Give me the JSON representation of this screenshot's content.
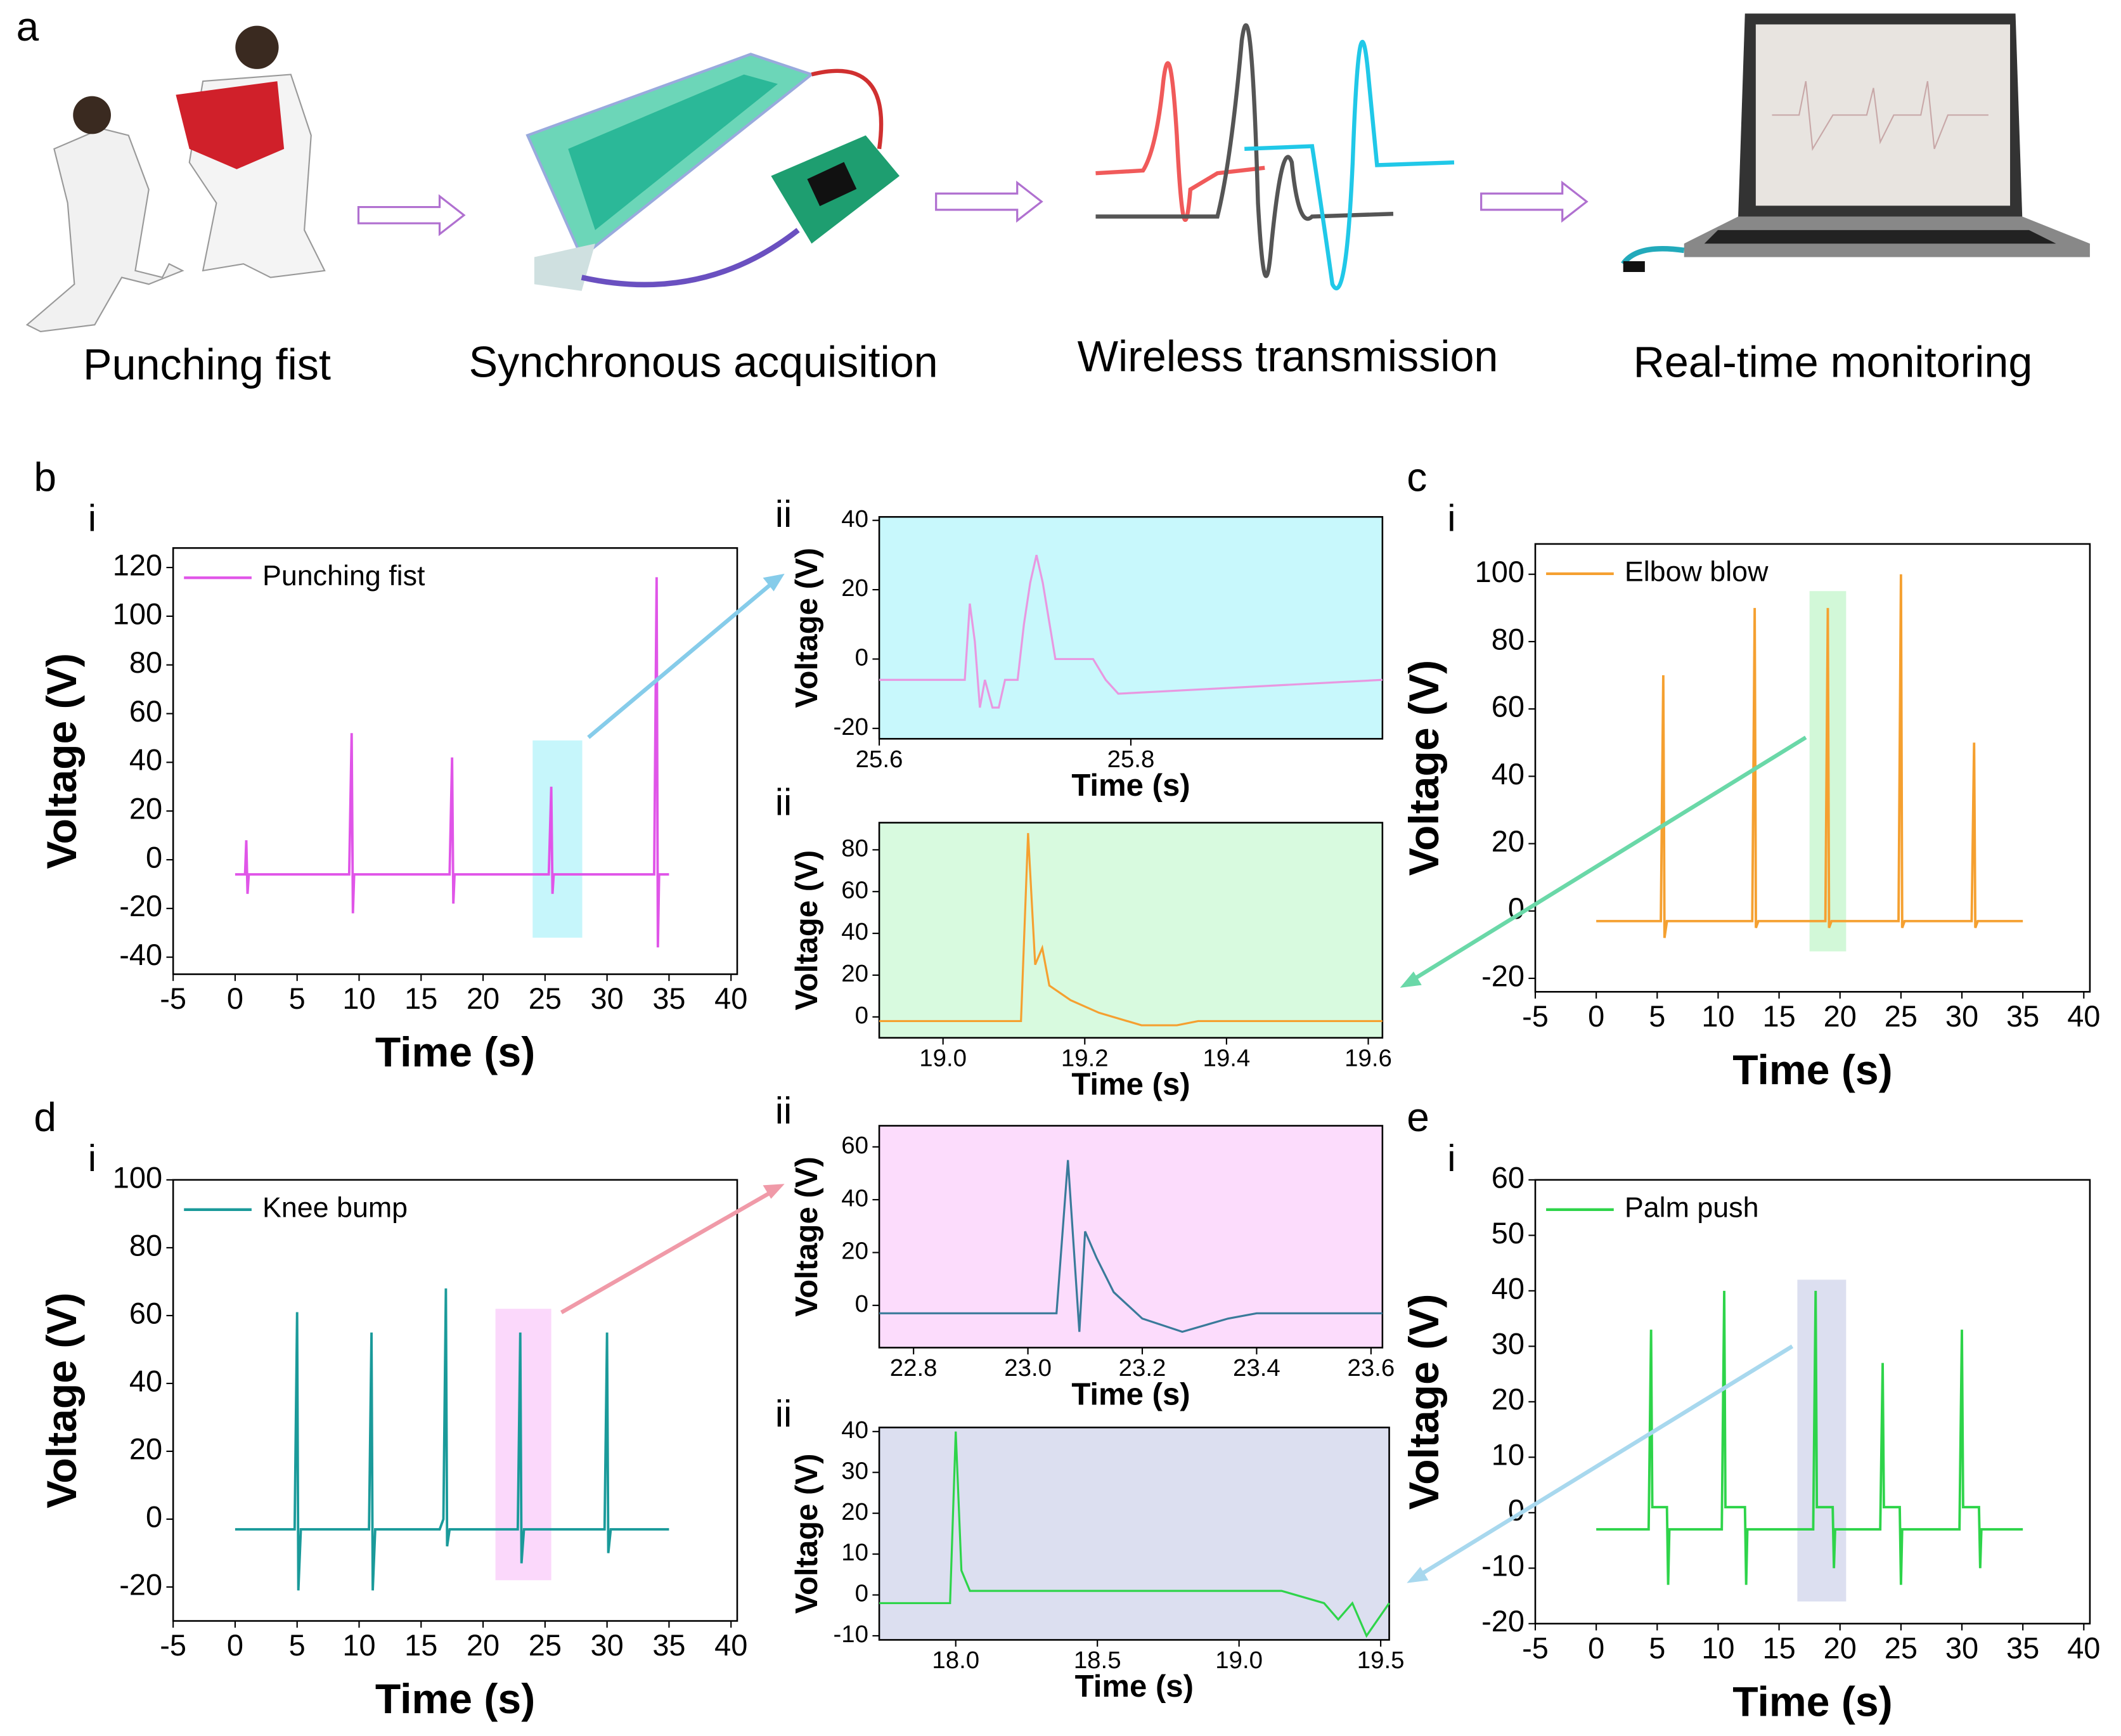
{
  "panel_a": {
    "label": "a",
    "steps": [
      "Punching fist",
      "Synchronous acquisition",
      "Wireless transmission",
      "Real-time monitoring"
    ]
  },
  "chart_data": [
    {
      "type": "line",
      "panel": "b",
      "subpanel": "i",
      "xlabel": "Time (s)",
      "ylabel": "Voltage (V)",
      "legend": "upper left",
      "xlim": [
        -5,
        40.5
      ],
      "xticks": [
        -5,
        0,
        5,
        10,
        15,
        20,
        25,
        30,
        35,
        40
      ],
      "ylim": [
        -47,
        128
      ],
      "yticks": [
        -40,
        -20,
        0,
        20,
        40,
        60,
        80,
        100,
        120
      ],
      "highlight": {
        "x0": 24,
        "x1": 28,
        "y0": -32,
        "y1": 49,
        "color": "#c6f6fb"
      },
      "series": [
        {
          "name": "Punching fist",
          "color": "#e055e8",
          "x": [
            0,
            0.8,
            0.9,
            1.0,
            1.1,
            1.3,
            9.2,
            9.4,
            9.5,
            9.6,
            9.8,
            17.3,
            17.5,
            17.6,
            17.7,
            17.9,
            25.3,
            25.5,
            25.6,
            25.7,
            26,
            33.8,
            34,
            34.1,
            34.2,
            34.4,
            35
          ],
          "values": [
            -6,
            -6,
            8,
            -14,
            -6,
            -6,
            -6,
            52,
            -22,
            -6,
            -6,
            -6,
            42,
            -18,
            -6,
            -6,
            -6,
            30,
            -14,
            -6,
            -6,
            -6,
            116,
            -36,
            -6,
            -6,
            -6
          ]
        }
      ]
    },
    {
      "type": "line",
      "subpanel": "ii",
      "xlabel": "Time (s)",
      "ylabel": "Voltage (V)",
      "background": "#c8f8fc",
      "xlim": [
        25.6,
        26.0
      ],
      "xticks": [
        25.6,
        25.8
      ],
      "ylim": [
        -23,
        41
      ],
      "yticks": [
        -20,
        0,
        20,
        40
      ],
      "series": [
        {
          "color": "#e898e0",
          "x": [
            25.6,
            25.668,
            25.672,
            25.676,
            25.68,
            25.684,
            25.69,
            25.695,
            25.7,
            25.71,
            25.715,
            25.72,
            25.725,
            25.73,
            25.74,
            25.77,
            25.78,
            25.79,
            26.0
          ],
          "values": [
            -6,
            -6,
            16,
            5,
            -14,
            -6,
            -14,
            -14,
            -6,
            -6,
            10,
            22,
            30,
            22,
            0,
            0,
            -6,
            -10,
            -6
          ]
        }
      ]
    },
    {
      "type": "line",
      "subpanel": "ii",
      "xlabel": "Time (s)",
      "ylabel": "Voltage (V)",
      "background": "#d8fadf",
      "xlim": [
        18.91,
        19.62
      ],
      "xticks": [
        {
          "value": 19,
          "label": "19.0"
        },
        19.2,
        19.4,
        19.6
      ],
      "ylim": [
        -10,
        93
      ],
      "yticks": [
        0,
        20,
        40,
        60,
        80
      ],
      "series": [
        {
          "color": "#f5a030",
          "x": [
            18.91,
            19.11,
            19.12,
            19.13,
            19.14,
            19.15,
            19.18,
            19.22,
            19.28,
            19.33,
            19.36,
            19.62
          ],
          "values": [
            -2,
            -2,
            88,
            25,
            33,
            15,
            8,
            2,
            -4,
            -4,
            -2,
            -2
          ]
        }
      ]
    },
    {
      "type": "line",
      "panel": "c",
      "subpanel": "i",
      "xlabel": "Time (s)",
      "ylabel": "Voltage (V)",
      "legend": "upper left",
      "xlim": [
        -5,
        40.5
      ],
      "xticks": [
        -5,
        0,
        5,
        10,
        15,
        20,
        25,
        30,
        35,
        40
      ],
      "ylim": [
        -24,
        109
      ],
      "yticks": [
        -20,
        0,
        20,
        40,
        60,
        80,
        100
      ],
      "highlight": {
        "x0": 17.5,
        "x1": 20.5,
        "y0": -12,
        "y1": 95,
        "color": "#d2f8d8"
      },
      "series": [
        {
          "name": "Elbow blow",
          "color": "#f5a030",
          "x": [
            0,
            5.3,
            5.5,
            5.6,
            5.8,
            12.8,
            13,
            13.1,
            13.3,
            18.8,
            19,
            19.1,
            19.3,
            24.8,
            25,
            25.1,
            25.3,
            30.8,
            31,
            31.1,
            31.3,
            35
          ],
          "values": [
            -3,
            -3,
            70,
            -8,
            -3,
            -3,
            90,
            -5,
            -3,
            -3,
            90,
            -5,
            -3,
            -3,
            100,
            -5,
            -3,
            -3,
            50,
            -5,
            -3,
            -3
          ]
        }
      ]
    },
    {
      "type": "line",
      "panel": "d",
      "subpanel": "i",
      "xlabel": "Time (s)",
      "ylabel": "Voltage (V)",
      "legend": "upper left",
      "xlim": [
        -5,
        40.5
      ],
      "xticks": [
        -5,
        0,
        5,
        10,
        15,
        20,
        25,
        30,
        35,
        40
      ],
      "ylim": [
        -30,
        100
      ],
      "yticks": [
        -20,
        0,
        20,
        40,
        60,
        80,
        100
      ],
      "highlight": {
        "x0": 21,
        "x1": 25.5,
        "y0": -18,
        "y1": 62,
        "color": "#fbd8fb"
      },
      "series": [
        {
          "name": "Knee bump",
          "color": "#1a9a9a",
          "x": [
            0,
            4.8,
            5,
            5.1,
            5.3,
            10.8,
            11,
            11.1,
            11.3,
            16.5,
            16.8,
            17,
            17.1,
            17.3,
            22.8,
            23,
            23.1,
            23.3,
            29.8,
            30,
            30.1,
            30.3,
            35
          ],
          "values": [
            -3,
            -3,
            61,
            -21,
            -3,
            -3,
            55,
            -21,
            -3,
            -3,
            0,
            68,
            -8,
            -3,
            -3,
            55,
            -13,
            -3,
            -3,
            55,
            -10,
            -3,
            -3
          ]
        }
      ]
    },
    {
      "type": "line",
      "subpanel": "ii",
      "xlabel": "Time (s)",
      "ylabel": "Voltage (V)",
      "background": "#fcdcfc",
      "xlim": [
        22.74,
        23.62
      ],
      "xticks": [
        22.8,
        {
          "value": 23,
          "label": "23.0"
        },
        23.2,
        23.4,
        23.6
      ],
      "ylim": [
        -16,
        68
      ],
      "yticks": [
        0,
        20,
        40,
        60
      ],
      "series": [
        {
          "color": "#3a7a9a",
          "x": [
            22.74,
            23.05,
            23.07,
            23.09,
            23.1,
            23.12,
            23.15,
            23.2,
            23.27,
            23.35,
            23.4,
            23.62
          ],
          "values": [
            -3,
            -3,
            55,
            -10,
            28,
            18,
            5,
            -5,
            -10,
            -5,
            -3,
            -3
          ]
        }
      ]
    },
    {
      "type": "line",
      "subpanel": "ii",
      "xlabel": "Time (s)",
      "ylabel": "Voltage (V)",
      "background": "#dcdff0",
      "xlim": [
        17.73,
        19.53
      ],
      "xticks": [
        {
          "value": 18,
          "label": "18.0"
        },
        18.5,
        {
          "value": 19,
          "label": "19.0"
        },
        19.5
      ],
      "ylim": [
        -11,
        41
      ],
      "yticks": [
        -10,
        0,
        10,
        20,
        30,
        40
      ],
      "series": [
        {
          "color": "#2ed44a",
          "x": [
            17.73,
            17.98,
            18.0,
            18.02,
            18.05,
            19.15,
            19.3,
            19.35,
            19.4,
            19.45,
            19.53
          ],
          "values": [
            -2,
            -2,
            40,
            6,
            1,
            1,
            -2,
            -6,
            -2,
            -10,
            -2
          ]
        }
      ]
    },
    {
      "type": "line",
      "panel": "e",
      "subpanel": "i",
      "xlabel": "Time (s)",
      "ylabel": "Voltage (V)",
      "legend": "upper left",
      "xlim": [
        -5,
        40.5
      ],
      "xticks": [
        -5,
        0,
        5,
        10,
        15,
        20,
        25,
        30,
        35,
        40
      ],
      "ylim": [
        -20,
        60
      ],
      "yticks": [
        -20,
        -10,
        0,
        10,
        20,
        30,
        40,
        50,
        60
      ],
      "highlight": {
        "x0": 16.5,
        "x1": 20.5,
        "y0": -16,
        "y1": 42,
        "color": "#dcdff0"
      },
      "series": [
        {
          "name": "Palm push",
          "color": "#2ed44a",
          "x": [
            0,
            4.3,
            4.5,
            4.6,
            5.8,
            5.9,
            6.0,
            10.3,
            10.5,
            10.6,
            12.2,
            12.3,
            12.4,
            17.8,
            18,
            18.1,
            19.4,
            19.5,
            19.6,
            23.3,
            23.5,
            23.6,
            24.9,
            25,
            25.1,
            29.8,
            30,
            30.1,
            31.4,
            31.5,
            31.6,
            35
          ],
          "values": [
            -3,
            -3,
            33,
            1,
            1,
            -13,
            -3,
            -3,
            40,
            1,
            1,
            -13,
            -3,
            -3,
            40,
            1,
            1,
            -10,
            -3,
            -3,
            27,
            1,
            1,
            -13,
            -3,
            -3,
            33,
            1,
            1,
            -10,
            -3,
            -3
          ]
        }
      ]
    }
  ]
}
